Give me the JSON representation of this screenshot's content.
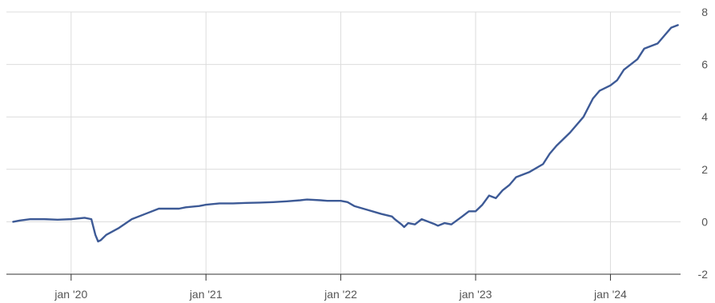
{
  "chart_data": {
    "type": "line",
    "title": "",
    "xlabel": "",
    "ylabel": "",
    "grid": true,
    "xlim": [
      2019.52,
      2024.52
    ],
    "ylim": [
      -2,
      8
    ],
    "y_ticks": [
      {
        "value": -2,
        "label": "-2"
      },
      {
        "value": 0,
        "label": "0"
      },
      {
        "value": 2,
        "label": "2"
      },
      {
        "value": 4,
        "label": "4"
      },
      {
        "value": 6,
        "label": "6"
      },
      {
        "value": 8,
        "label": "8"
      }
    ],
    "x_ticks": [
      {
        "value": 2020,
        "label": "jan '20"
      },
      {
        "value": 2021,
        "label": "jan '21"
      },
      {
        "value": 2022,
        "label": "jan '22"
      },
      {
        "value": 2023,
        "label": "jan '23"
      },
      {
        "value": 2024,
        "label": "jan '24"
      }
    ],
    "colors": {
      "series": "#3d5a96",
      "grid": "#dcdcdc",
      "axis": "#333333",
      "tick_label": "#555555"
    },
    "series": [
      {
        "name": "",
        "x": [
          2019.57,
          2019.62,
          2019.7,
          2019.8,
          2019.9,
          2020.0,
          2020.1,
          2020.15,
          2020.18,
          2020.2,
          2020.22,
          2020.26,
          2020.35,
          2020.45,
          2020.55,
          2020.65,
          2020.7,
          2020.8,
          2020.85,
          2020.95,
          2021.0,
          2021.1,
          2021.2,
          2021.3,
          2021.4,
          2021.5,
          2021.6,
          2021.7,
          2021.75,
          2021.85,
          2021.9,
          2021.95,
          2022.0,
          2022.05,
          2022.1,
          2022.2,
          2022.3,
          2022.38,
          2022.4,
          2022.45,
          2022.47,
          2022.5,
          2022.55,
          2022.6,
          2022.65,
          2022.7,
          2022.72,
          2022.77,
          2022.82,
          2022.9,
          2022.95,
          2023.0,
          2023.05,
          2023.1,
          2023.15,
          2023.2,
          2023.25,
          2023.3,
          2023.4,
          2023.5,
          2023.55,
          2023.6,
          2023.7,
          2023.8,
          2023.87,
          2023.92,
          2024.0,
          2024.05,
          2024.1,
          2024.2,
          2024.25,
          2024.35,
          2024.4,
          2024.45,
          2024.5
        ],
        "y": [
          0.0,
          0.05,
          0.1,
          0.1,
          0.08,
          0.1,
          0.15,
          0.1,
          -0.5,
          -0.75,
          -0.7,
          -0.5,
          -0.25,
          0.1,
          0.3,
          0.5,
          0.5,
          0.5,
          0.55,
          0.6,
          0.65,
          0.7,
          0.7,
          0.72,
          0.73,
          0.75,
          0.78,
          0.82,
          0.85,
          0.82,
          0.8,
          0.8,
          0.8,
          0.75,
          0.6,
          0.45,
          0.3,
          0.2,
          0.1,
          -0.1,
          -0.2,
          -0.05,
          -0.1,
          0.1,
          0.0,
          -0.1,
          -0.15,
          -0.05,
          -0.1,
          0.2,
          0.4,
          0.4,
          0.65,
          1.0,
          0.9,
          1.2,
          1.4,
          1.7,
          1.9,
          2.2,
          2.6,
          2.9,
          3.4,
          4.0,
          4.7,
          5.0,
          5.2,
          5.4,
          5.8,
          6.2,
          6.6,
          6.8,
          7.1,
          7.4,
          7.5
        ]
      }
    ]
  }
}
